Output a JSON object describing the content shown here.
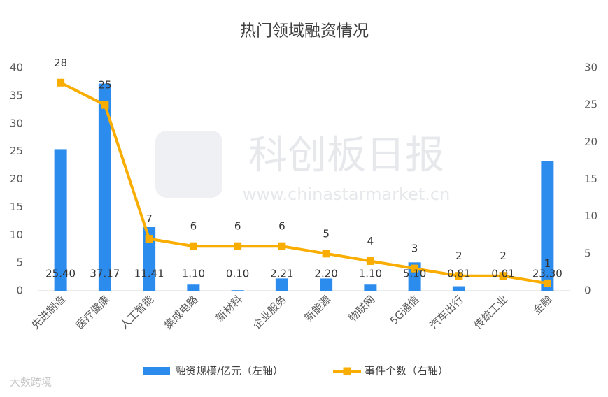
{
  "chart_data": {
    "type": "combo",
    "title": "热门领域融资情况",
    "categories": [
      "先进制造",
      "医疗健康",
      "人工智能",
      "集成电路",
      "新材料",
      "企业服务",
      "新能源",
      "物联网",
      "5G通信",
      "汽车出行",
      "传统工业",
      "金融"
    ],
    "series": [
      {
        "name": "融资规模/亿元（左轴）",
        "type": "bar",
        "color": "#2b8cee",
        "values": [
          25.4,
          37.17,
          11.41,
          1.1,
          0.1,
          2.21,
          2.2,
          1.1,
          5.1,
          0.81,
          0.01,
          23.3
        ],
        "value_labels": [
          "25.40",
          "37.17",
          "11.41",
          "1.10",
          "0.10",
          "2.21",
          "2.20",
          "1.10",
          "5.10",
          "0.81",
          "0.01",
          "23.30"
        ]
      },
      {
        "name": "事件个数（右轴）",
        "type": "line",
        "axis": "y2",
        "color": "#f9ad00",
        "values": [
          28,
          25,
          7,
          6,
          6,
          6,
          5,
          4,
          3,
          2,
          2,
          1
        ]
      }
    ],
    "ylim": [
      0,
      40
    ],
    "yticks": [
      0,
      5,
      10,
      15,
      20,
      25,
      30,
      35,
      40
    ],
    "y2lim": [
      0,
      30
    ],
    "y2ticks": [
      0,
      5,
      10,
      15,
      20,
      25,
      30
    ],
    "grid": false,
    "legend": "bottom",
    "watermarks": [
      "科创板日报",
      "www.chinastarmarket.cn",
      "大数跨境"
    ]
  }
}
